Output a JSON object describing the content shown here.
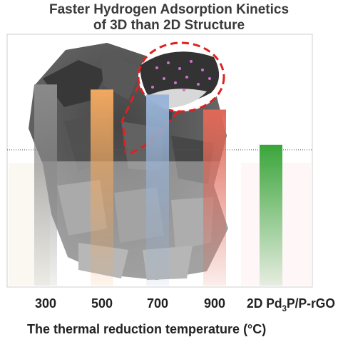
{
  "chart_data": {
    "type": "bar",
    "title_line1": "Faster Hydrogen Adsorption Kinetics",
    "title_line2": "of 3D than 2D Structure",
    "xlabel": "The thermal reduction temperature (°C)",
    "ylabel": "",
    "categories": [
      "300",
      "500",
      "700",
      "900",
      "2D Pd3P/P-rGO"
    ],
    "values": [
      0.8,
      0.78,
      0.76,
      0.7,
      0.56
    ],
    "ylim": [
      0,
      1
    ],
    "reference_line": 0.54,
    "colors": [
      "#8a8a8a",
      "#f0a860",
      "#98b4d8",
      "#e06858",
      "#3aa53a"
    ],
    "grid": false,
    "legend": "none"
  }
}
